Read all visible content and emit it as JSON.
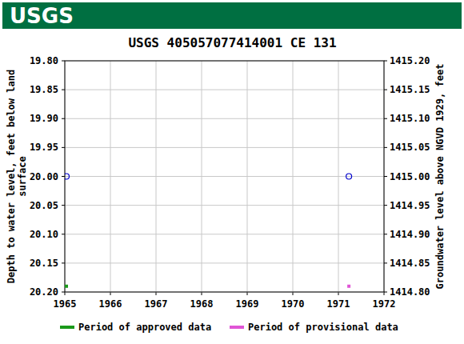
{
  "header": {
    "logo": "USGS"
  },
  "chart_data": {
    "type": "scatter",
    "title": "USGS 405057077414001 CE   131",
    "ylabel": "Depth to water level, feet below land\nsurface",
    "y2label": "Groundwater level above NGVD 1929, feet",
    "xlim": [
      1965,
      1972
    ],
    "xticks": [
      1965,
      1966,
      1967,
      1968,
      1969,
      1970,
      1971,
      1972
    ],
    "ylim": [
      20.2,
      19.8
    ],
    "yticks": [
      {
        "value": 19.8,
        "label": "19.80"
      },
      {
        "value": 19.85,
        "label": "19.85"
      },
      {
        "value": 19.9,
        "label": "19.90"
      },
      {
        "value": 19.95,
        "label": "19.95"
      },
      {
        "value": 20.0,
        "label": "20.00"
      },
      {
        "value": 20.05,
        "label": "20.05"
      },
      {
        "value": 20.1,
        "label": "20.10"
      },
      {
        "value": 20.15,
        "label": "20.15"
      },
      {
        "value": 20.2,
        "label": "20.20"
      }
    ],
    "y2lim": [
      1414.8,
      1415.2
    ],
    "y2ticks": [
      {
        "value": 1414.8,
        "label": "1414.80"
      },
      {
        "value": 1414.85,
        "label": "1414.85"
      },
      {
        "value": 1414.9,
        "label": "1414.90"
      },
      {
        "value": 1414.95,
        "label": "1414.95"
      },
      {
        "value": 1415.0,
        "label": "1415.00"
      },
      {
        "value": 1415.05,
        "label": "1415.05"
      },
      {
        "value": 1415.1,
        "label": "1415.10"
      },
      {
        "value": 1415.15,
        "label": "1415.15"
      },
      {
        "value": 1415.2,
        "label": "1415.20"
      }
    ],
    "grid": true,
    "legend": "bottom",
    "series": [
      {
        "type": "scatter",
        "color": "#0000cc",
        "marker": "circle",
        "x": [
          1965.035,
          1971.23
        ],
        "values": [
          20.0,
          20.0
        ]
      },
      {
        "type": "period",
        "name": "Period of approved data",
        "color": "#1a9a1a",
        "x": [
          1965.035
        ],
        "values": [
          20.19
        ]
      },
      {
        "type": "period",
        "name": "Period of provisional data",
        "color": "#e055d6",
        "x": [
          1971.23
        ],
        "values": [
          20.19
        ]
      }
    ]
  }
}
